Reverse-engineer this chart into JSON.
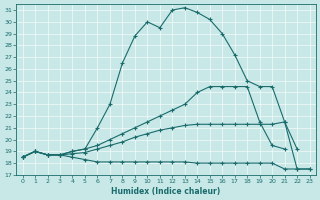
{
  "xlabel": "Humidex (Indice chaleur)",
  "bg_color": "#c8e8e8",
  "line_color": "#1a6b6b",
  "xlim": [
    -0.5,
    23.5
  ],
  "ylim": [
    17,
    31.5
  ],
  "yticks": [
    17,
    18,
    19,
    20,
    21,
    22,
    23,
    24,
    25,
    26,
    27,
    28,
    29,
    30,
    31
  ],
  "xticks": [
    0,
    1,
    2,
    3,
    4,
    5,
    6,
    7,
    8,
    9,
    10,
    11,
    12,
    13,
    14,
    15,
    16,
    17,
    18,
    19,
    20,
    21,
    22,
    23
  ],
  "lines": [
    {
      "x": [
        0,
        1,
        2,
        3,
        4,
        5,
        6,
        7,
        8,
        9,
        10,
        11,
        12,
        13,
        14,
        15,
        16,
        17,
        18,
        19,
        20,
        21,
        22,
        23
      ],
      "y": [
        18.5,
        19.0,
        18.7,
        18.7,
        19.0,
        19.2,
        21.0,
        23.0,
        26.5,
        28.8,
        30.0,
        29.5,
        31.0,
        31.2,
        30.8,
        30.2,
        29.0,
        27.2,
        25.0,
        24.5,
        24.5,
        21.5,
        17.5,
        17.5
      ]
    },
    {
      "x": [
        0,
        1,
        2,
        3,
        4,
        5,
        6,
        7,
        8,
        9,
        10,
        11,
        12,
        13,
        14,
        15,
        16,
        17,
        18,
        19,
        20,
        21,
        22,
        23
      ],
      "y": [
        18.5,
        19.0,
        18.7,
        18.7,
        19.0,
        19.2,
        19.5,
        20.0,
        20.5,
        21.0,
        21.5,
        22.0,
        22.5,
        23.0,
        24.0,
        24.5,
        24.5,
        24.5,
        24.5,
        21.5,
        19.5,
        19.2,
        null,
        null
      ]
    },
    {
      "x": [
        0,
        1,
        2,
        3,
        4,
        5,
        6,
        7,
        8,
        9,
        10,
        11,
        12,
        13,
        14,
        15,
        16,
        17,
        18,
        19,
        20,
        21,
        22,
        23
      ],
      "y": [
        18.5,
        19.0,
        18.7,
        18.7,
        18.8,
        18.9,
        19.2,
        19.5,
        19.8,
        20.2,
        20.5,
        20.8,
        21.0,
        21.2,
        21.3,
        21.3,
        21.3,
        21.3,
        21.3,
        21.3,
        21.3,
        21.5,
        19.2,
        null
      ]
    },
    {
      "x": [
        0,
        1,
        2,
        3,
        4,
        5,
        6,
        7,
        8,
        9,
        10,
        11,
        12,
        13,
        14,
        15,
        16,
        17,
        18,
        19,
        20,
        21,
        22,
        23
      ],
      "y": [
        18.5,
        19.0,
        18.7,
        18.7,
        18.5,
        18.3,
        18.1,
        18.1,
        18.1,
        18.1,
        18.1,
        18.1,
        18.1,
        18.1,
        18.0,
        18.0,
        18.0,
        18.0,
        18.0,
        18.0,
        18.0,
        17.5,
        17.5,
        17.5
      ]
    }
  ]
}
